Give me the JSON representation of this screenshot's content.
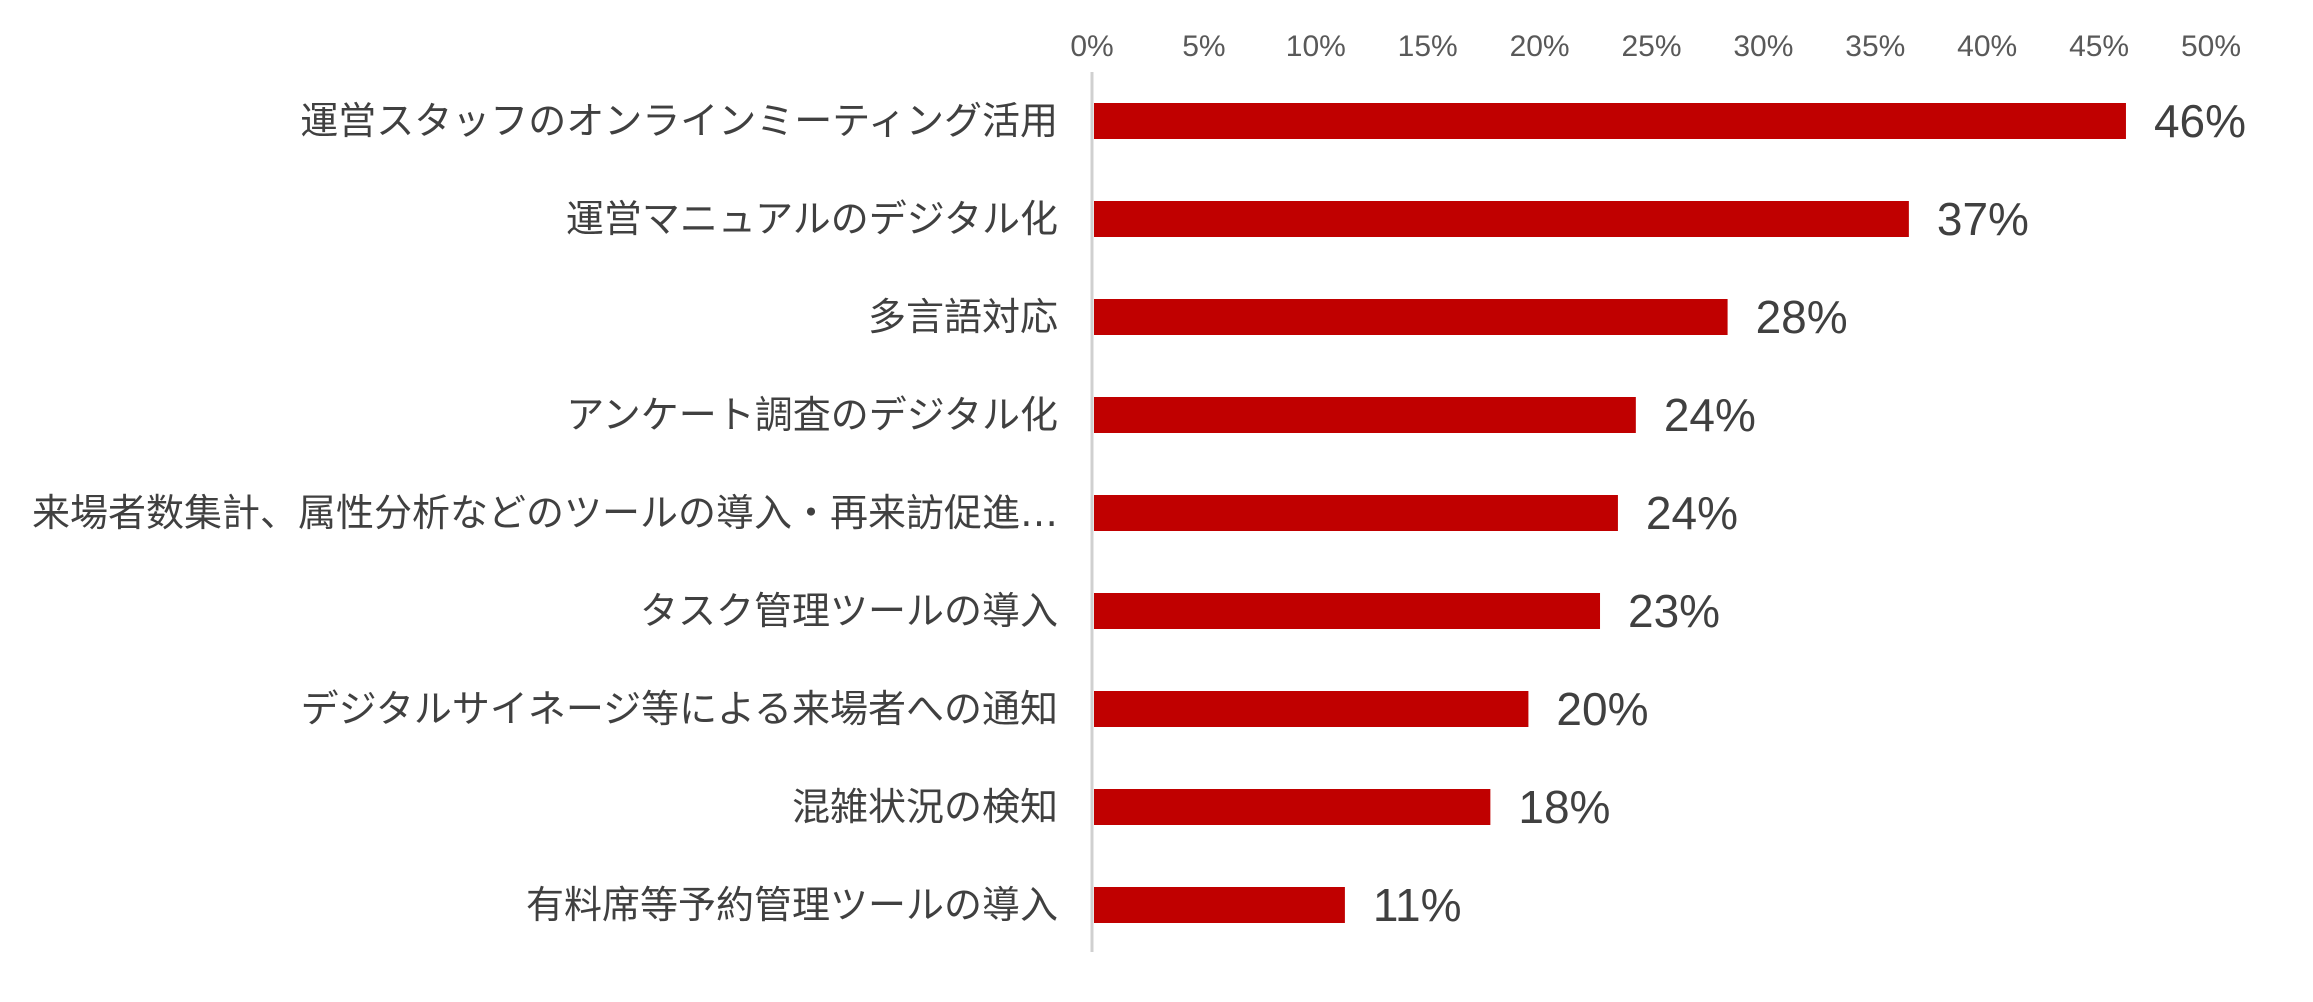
{
  "chart_data": {
    "type": "bar",
    "orientation": "horizontal",
    "title": "",
    "xlabel": "",
    "ylabel": "",
    "xlim": [
      0,
      50
    ],
    "tick_values": [
      0,
      5,
      10,
      15,
      20,
      25,
      30,
      35,
      40,
      45,
      50
    ],
    "tick_labels": [
      "0%",
      "5%",
      "10%",
      "15%",
      "20%",
      "25%",
      "30%",
      "35%",
      "40%",
      "45%",
      "50%"
    ],
    "categories": [
      "運営スタッフのオンラインミーティング活用",
      "運営マニュアルのデジタル化",
      "多言語対応",
      "アンケート調査のデジタル化",
      "来場者数集計、属性分析などのツールの導入・再来訪促進…",
      "タスク管理ツールの導入",
      "デジタルサイネージ等による来場者への通知",
      "混雑状況の検知",
      "有料席等予約管理ツールの導入"
    ],
    "values": [
      46.2,
      36.5,
      28.4,
      24.3,
      23.5,
      22.7,
      19.5,
      17.8,
      11.3
    ],
    "data_labels": [
      "46%",
      "37%",
      "28%",
      "24%",
      "24%",
      "23%",
      "20%",
      "18%",
      "11%"
    ],
    "bar_color": "#c00000",
    "grid": false,
    "legend": "none"
  }
}
